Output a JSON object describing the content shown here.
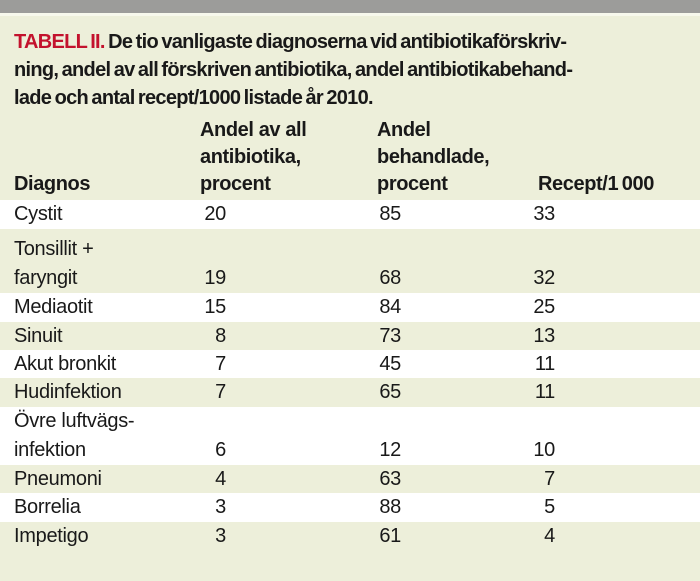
{
  "meta": {
    "background_color": "#edefda",
    "top_bar_color": "#9c9c9a",
    "accent_red": "#c3122d",
    "stripe_white": "#ffffff"
  },
  "caption": {
    "label": "TABELL II.",
    "line1": "De tio vanligaste diagnoserna vid antibiotikaförskriv-",
    "line2": "ning, andel av all förskriven antibiotika, andel antibiotikabehand-",
    "line3": "lade och antal recept/1000 listade år 2010."
  },
  "table": {
    "header": {
      "col1": [
        "Diagnos"
      ],
      "col2": [
        "Andel av all",
        "antibiotika,",
        "procent"
      ],
      "col3": [
        "Andel",
        "behandlade,",
        "procent"
      ],
      "col4": [
        "Recept/1 000"
      ]
    },
    "rows": [
      {
        "label": [
          "Cystit"
        ],
        "v1": "20",
        "v2": "85",
        "v3": "33"
      },
      {
        "label": [
          "Tonsillit +",
          "faryngit"
        ],
        "v1": "19",
        "v2": "68",
        "v3": "32"
      },
      {
        "label": [
          "Mediaotit"
        ],
        "v1": "15",
        "v2": "84",
        "v3": "25"
      },
      {
        "label": [
          "Sinuit"
        ],
        "v1": "8",
        "v2": "73",
        "v3": "13"
      },
      {
        "label": [
          "Akut bronkit"
        ],
        "v1": "7",
        "v2": "45",
        "v3": "11"
      },
      {
        "label": [
          "Hudinfektion"
        ],
        "v1": "7",
        "v2": "65",
        "v3": "11"
      },
      {
        "label": [
          "Övre luftvägs-",
          "infektion"
        ],
        "v1": "6",
        "v2": "12",
        "v3": "10"
      },
      {
        "label": [
          "Pneumoni"
        ],
        "v1": "4",
        "v2": "63",
        "v3": "7"
      },
      {
        "label": [
          "Borrelia"
        ],
        "v1": "3",
        "v2": "88",
        "v3": "5"
      },
      {
        "label": [
          "Impetigo"
        ],
        "v1": "3",
        "v2": "61",
        "v3": "4"
      }
    ]
  },
  "chart_data": {
    "type": "table",
    "title": "TABELL II. De tio vanligaste diagnoserna vid antibiotikaförskrivning, andel av all förskriven antibiotika, andel antibiotikabehandlade och antal recept/1000 listade år 2010.",
    "columns": [
      "Diagnos",
      "Andel av all antibiotika, procent",
      "Andel behandlade, procent",
      "Recept/1 000"
    ],
    "rows": [
      [
        "Cystit",
        20,
        85,
        33
      ],
      [
        "Tonsillit + faryngit",
        19,
        68,
        32
      ],
      [
        "Mediaotit",
        15,
        84,
        25
      ],
      [
        "Sinuit",
        8,
        73,
        13
      ],
      [
        "Akut bronkit",
        7,
        45,
        11
      ],
      [
        "Hudinfektion",
        7,
        65,
        11
      ],
      [
        "Övre luftvägsinfektion",
        6,
        12,
        10
      ],
      [
        "Pneumoni",
        4,
        63,
        7
      ],
      [
        "Borrelia",
        3,
        88,
        5
      ],
      [
        "Impetigo",
        3,
        61,
        4
      ]
    ],
    "layout": {
      "zebra_striping": true,
      "stripe_colors": [
        "#ffffff",
        "#edefda"
      ],
      "header_bold": true
    }
  }
}
